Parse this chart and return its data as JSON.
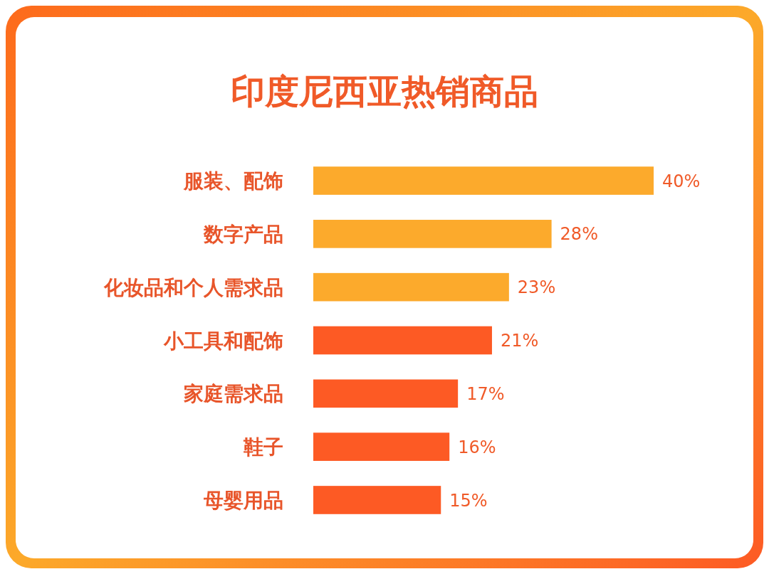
{
  "chart_data": {
    "type": "bar",
    "orientation": "horizontal",
    "title": "印度尼西亚热销商品",
    "categories": [
      "服装、配饰",
      "数字产品",
      "化妆品和个人需求品",
      "小工具和配饰",
      "家庭需求品",
      "鞋子",
      "母婴用品"
    ],
    "values": [
      40,
      28,
      23,
      21,
      17,
      16,
      15
    ],
    "colors": [
      "#fcaa2c",
      "#fcaa2c",
      "#fcaa2c",
      "#fd5a24",
      "#fd5a24",
      "#fd5a24",
      "#fd5a24"
    ],
    "value_labels": [
      "40%",
      "28%",
      "23%",
      "21%",
      "17%",
      "16%",
      "15%"
    ]
  }
}
